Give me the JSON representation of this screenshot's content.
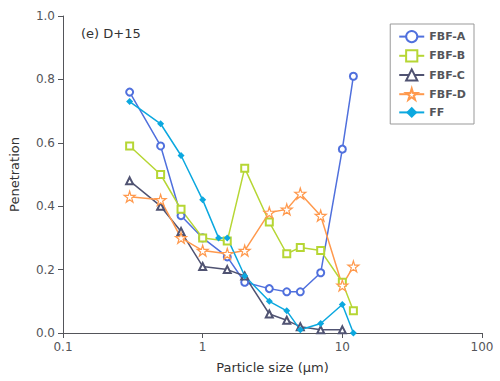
{
  "chart_data": {
    "type": "line",
    "title": "(e) D+15",
    "xlabel": "Particle size (μm)",
    "ylabel": "Penetration",
    "log": "x",
    "grid": false,
    "legend": "upper right",
    "xlim": [
      0.1,
      100
    ],
    "ylim": [
      0.0,
      1.0
    ],
    "xticks": [
      0.1,
      1,
      10,
      100
    ],
    "yticks": [
      {
        "value": 0.0,
        "label": "0.0"
      },
      {
        "value": 0.2,
        "label": "0.2"
      },
      {
        "value": 0.4,
        "label": "0.4"
      },
      {
        "value": 0.6,
        "label": "0.6"
      },
      {
        "value": 0.8,
        "label": "0.8"
      },
      {
        "value": 1.0,
        "label": "1.0"
      }
    ],
    "series": [
      {
        "name": "FBF-A",
        "marker": "circle-open",
        "x": [
          0.3,
          0.5,
          0.7,
          1.0,
          1.5,
          2.0,
          3.0,
          4.0,
          5.0,
          7.0,
          10.0,
          12.0
        ],
        "values": [
          0.76,
          0.59,
          0.37,
          0.3,
          0.24,
          0.16,
          0.14,
          0.13,
          0.13,
          0.19,
          0.58,
          0.81
        ]
      },
      {
        "name": "FBF-B",
        "marker": "square-open",
        "x": [
          0.3,
          0.5,
          0.7,
          1.0,
          1.5,
          2.0,
          3.0,
          4.0,
          5.0,
          7.0,
          10.0,
          12.0
        ],
        "values": [
          0.59,
          0.5,
          0.39,
          0.3,
          0.29,
          0.52,
          0.35,
          0.25,
          0.27,
          0.26,
          0.16,
          0.07
        ]
      },
      {
        "name": "FBF-C",
        "marker": "triangle-open",
        "x": [
          0.3,
          0.5,
          0.7,
          1.0,
          1.5,
          2.0,
          3.0,
          4.0,
          5.0,
          7.0,
          10.0
        ],
        "values": [
          0.48,
          0.4,
          0.32,
          0.21,
          0.2,
          0.18,
          0.06,
          0.04,
          0.02,
          0.01,
          0.01
        ]
      },
      {
        "name": "FBF-D",
        "marker": "star-open",
        "x": [
          0.3,
          0.5,
          0.7,
          1.0,
          1.5,
          2.0,
          3.0,
          4.0,
          5.0,
          7.0,
          10.0,
          12.0
        ],
        "values": [
          0.43,
          0.42,
          0.3,
          0.26,
          0.25,
          0.26,
          0.38,
          0.39,
          0.44,
          0.37,
          0.15,
          0.21
        ]
      },
      {
        "name": "FF",
        "marker": "diamond",
        "x": [
          0.3,
          0.5,
          0.7,
          1.0,
          1.3,
          1.5,
          2.0,
          3.0,
          4.0,
          5.0,
          7.0,
          10.0,
          12.0
        ],
        "values": [
          0.73,
          0.66,
          0.56,
          0.42,
          0.3,
          0.3,
          0.18,
          0.1,
          0.07,
          0.01,
          0.03,
          0.09,
          0.0
        ]
      }
    ]
  }
}
